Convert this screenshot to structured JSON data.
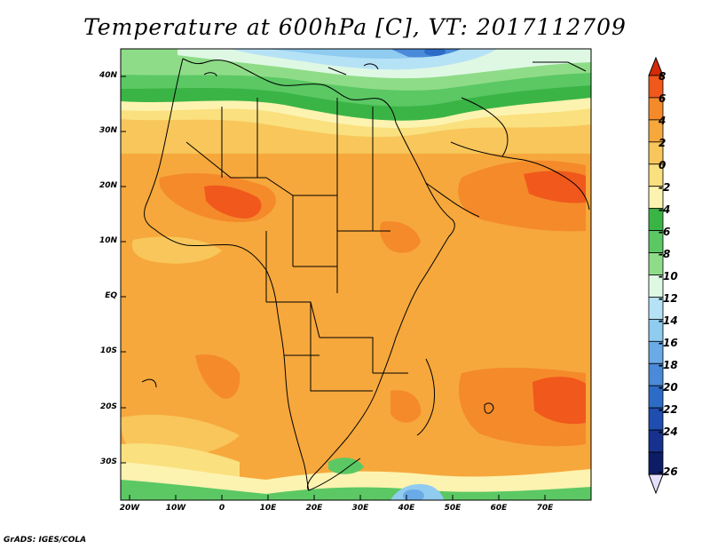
{
  "title": "Temperature at 600hPa [C], VT: 2017112709",
  "credit": "GrADS: IGES/COLA",
  "map": {
    "variable": "temperature",
    "level": "600hPa",
    "units": "C",
    "valid_time": "2017112709",
    "lat_labels": [
      "40N",
      "30N",
      "20N",
      "10N",
      "EQ",
      "10S",
      "20S",
      "30S"
    ],
    "lon_labels": [
      "20W",
      "10W",
      "0",
      "10E",
      "20E",
      "30E",
      "40E",
      "50E",
      "60E",
      "70E"
    ]
  },
  "colorbar": {
    "labels": [
      "8",
      "6",
      "4",
      "2",
      "0",
      "-2",
      "-4",
      "-6",
      "-8",
      "-10",
      "-12",
      "-14",
      "-16",
      "-18",
      "-20",
      "-22",
      "-24",
      "-26"
    ],
    "colors": [
      "#d42a08",
      "#f0581c",
      "#f58a2a",
      "#f6a83c",
      "#f8c65a",
      "#fae07e",
      "#fdf3b0",
      "#3bb446",
      "#5bc864",
      "#8fdc88",
      "#def8e4",
      "#b6e2f6",
      "#90cbf0",
      "#6aaae6",
      "#4a8ad8",
      "#2c6cc6",
      "#1f4eb0",
      "#16328e",
      "#0e1c66",
      "#e4e0fa"
    ]
  }
}
